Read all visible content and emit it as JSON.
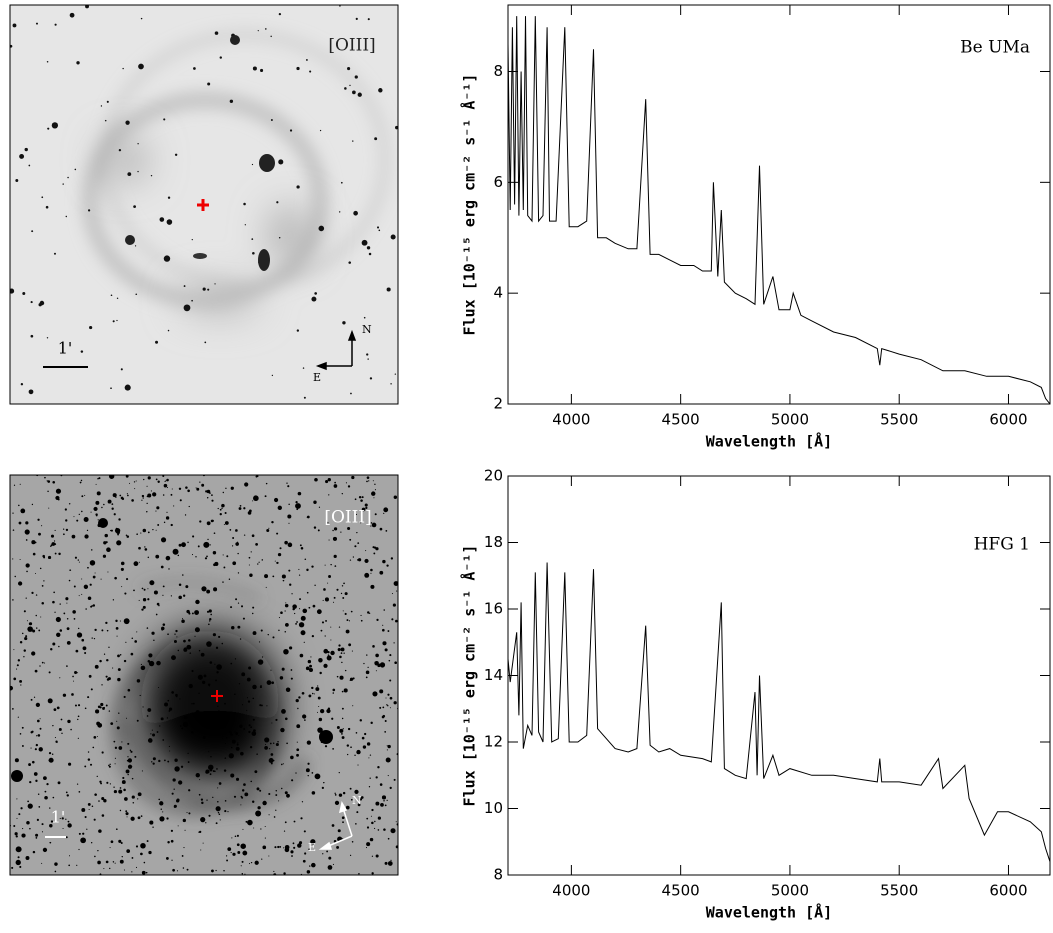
{
  "images": [
    {
      "label": "[OIII]",
      "scale_label": "1'",
      "north": "N",
      "east": "E"
    },
    {
      "label": "[OIII]",
      "scale_label": "1'",
      "north": "N",
      "east": "E"
    }
  ],
  "chart_data": [
    {
      "type": "line",
      "annotation": "Be UMa",
      "xlabel": "Wavelength [Å]",
      "ylabel": "Flux [10⁻¹⁵ erg cm⁻² s⁻¹ Å⁻¹]",
      "color": "#000000",
      "x": [
        3710,
        3720,
        3730,
        3740,
        3750,
        3760,
        3770,
        3780,
        3790,
        3800,
        3820,
        3835,
        3850,
        3870,
        3889,
        3900,
        3930,
        3970,
        3990,
        4030,
        4070,
        4101,
        4120,
        4160,
        4200,
        4260,
        4300,
        4340,
        4360,
        4400,
        4450,
        4500,
        4560,
        4600,
        4640,
        4650,
        4670,
        4686,
        4700,
        4750,
        4800,
        4840,
        4861,
        4880,
        4922,
        4950,
        5000,
        5015,
        5050,
        5100,
        5200,
        5300,
        5400,
        5411,
        5420,
        5500,
        5600,
        5700,
        5800,
        5900,
        6000,
        6100,
        6150,
        6170,
        6190
      ],
      "values": [
        8.5,
        5.5,
        8.8,
        5.6,
        9.0,
        5.4,
        8.0,
        5.5,
        9.0,
        5.4,
        5.3,
        9.0,
        5.3,
        5.4,
        8.8,
        5.3,
        5.3,
        8.8,
        5.2,
        5.2,
        5.3,
        8.4,
        5.0,
        5.0,
        4.9,
        4.8,
        4.8,
        7.5,
        4.7,
        4.7,
        4.6,
        4.5,
        4.5,
        4.4,
        4.4,
        6.0,
        4.3,
        5.5,
        4.2,
        4.0,
        3.9,
        3.8,
        6.3,
        3.8,
        4.3,
        3.7,
        3.7,
        4.0,
        3.6,
        3.5,
        3.3,
        3.2,
        3.0,
        2.7,
        3.0,
        2.9,
        2.8,
        2.6,
        2.6,
        2.5,
        2.5,
        2.4,
        2.3,
        2.1,
        2.0
      ],
      "xlim": [
        3710,
        6190
      ],
      "xticks": [
        4000,
        4500,
        5000,
        5500,
        6000
      ],
      "ylim": [
        2,
        9.2
      ],
      "yticks": [
        2,
        4,
        6,
        8
      ]
    },
    {
      "type": "line",
      "annotation": "HFG 1",
      "xlabel": "Wavelength [Å]",
      "ylabel": "Flux [10⁻¹⁵ erg cm⁻² s⁻¹ Å⁻¹]",
      "color": "#000000",
      "x": [
        3710,
        3720,
        3750,
        3760,
        3770,
        3780,
        3800,
        3820,
        3835,
        3850,
        3870,
        3889,
        3910,
        3940,
        3970,
        3990,
        4030,
        4070,
        4101,
        4120,
        4200,
        4260,
        4300,
        4340,
        4360,
        4400,
        4450,
        4500,
        4600,
        4640,
        4686,
        4700,
        4750,
        4800,
        4840,
        4850,
        4861,
        4880,
        4922,
        4950,
        5000,
        5100,
        5200,
        5300,
        5400,
        5411,
        5420,
        5500,
        5600,
        5680,
        5700,
        5800,
        5820,
        5890,
        5950,
        6000,
        6100,
        6150,
        6170,
        6190
      ],
      "values": [
        14.5,
        13.8,
        15.3,
        12.8,
        16.2,
        11.8,
        12.5,
        12.2,
        17.1,
        12.3,
        12.0,
        17.4,
        12.0,
        12.1,
        17.1,
        12.0,
        12.0,
        12.2,
        17.2,
        12.4,
        11.8,
        11.7,
        11.8,
        15.5,
        11.9,
        11.7,
        11.8,
        11.6,
        11.5,
        11.4,
        16.2,
        11.2,
        11.0,
        10.9,
        13.5,
        11.0,
        14.0,
        10.9,
        11.6,
        11.0,
        11.2,
        11.0,
        11.0,
        10.9,
        10.8,
        11.5,
        10.8,
        10.8,
        10.7,
        11.5,
        10.6,
        11.3,
        10.3,
        9.2,
        9.9,
        9.9,
        9.6,
        9.3,
        8.8,
        8.4
      ],
      "xlim": [
        3710,
        6190
      ],
      "xticks": [
        4000,
        4500,
        5000,
        5500,
        6000
      ],
      "ylim": [
        8,
        20
      ],
      "yticks": [
        8,
        10,
        12,
        14,
        16,
        18,
        20
      ]
    }
  ]
}
